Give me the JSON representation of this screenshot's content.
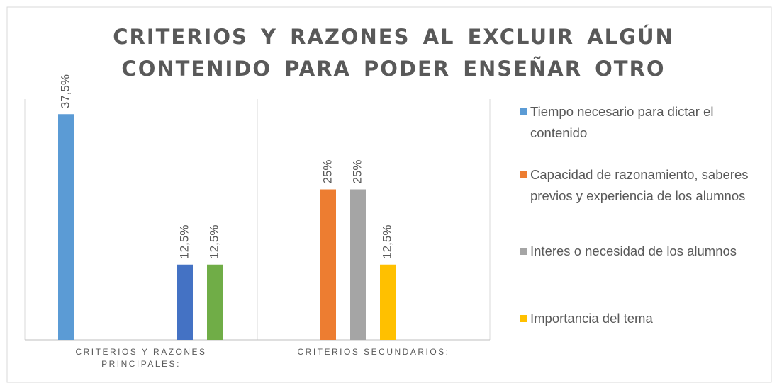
{
  "chart_data": {
    "type": "bar",
    "title": "CRITERIOS Y RAZONES AL EXCLUIR ALGÚN CONTENIDO PARA PODER ENSEÑAR OTRO",
    "categories": [
      "CRITERIOS Y RAZONES PRINCIPALES:",
      "CRITERIOS SECUNDARIOS:"
    ],
    "ylim": [
      0,
      40
    ],
    "legend": "right",
    "series": [
      {
        "name": "Tiempo necesario para dictar el contenido",
        "color": "#5b9bd5",
        "values": [
          37.5,
          null
        ],
        "value_labels": [
          "37,5%",
          null
        ]
      },
      {
        "name": "Capacidad de razonamiento, saberes previos y experiencia de los alumnos",
        "color": "#ed7d31",
        "values": [
          null,
          25
        ],
        "value_labels": [
          null,
          "25%"
        ]
      },
      {
        "name": "Interes o necesidad de los alumnos",
        "color": "#a5a5a5",
        "values": [
          null,
          25
        ],
        "value_labels": [
          null,
          "25%"
        ]
      },
      {
        "name": "Importancia del tema",
        "color": "#ffc000",
        "values": [
          null,
          12.5
        ],
        "value_labels": [
          null,
          "12,5%"
        ]
      },
      {
        "name": null,
        "color": "#4472c4",
        "values": [
          12.5,
          null
        ],
        "value_labels": [
          "12,5%",
          null
        ]
      },
      {
        "name": null,
        "color": "#70ad47",
        "values": [
          12.5,
          null
        ],
        "value_labels": [
          "12,5%",
          null
        ]
      }
    ]
  }
}
